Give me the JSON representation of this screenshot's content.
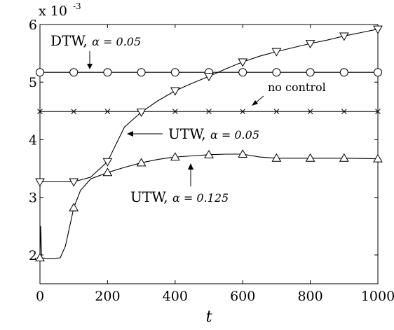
{
  "chart_data": {
    "type": "line",
    "xlabel": "t",
    "ylabel": "",
    "xlim": [
      0,
      1000
    ],
    "ylim": [
      1.5,
      6
    ],
    "y_scale_label": "x 10",
    "y_scale_exponent": "-3",
    "grid": false,
    "xticks": [
      "0",
      "200",
      "400",
      "600",
      "800",
      "1000"
    ],
    "yticks": [
      "2",
      "3",
      "4",
      "5",
      "6"
    ],
    "series": [
      {
        "name": "DTW, α = 0.05",
        "marker": "circle",
        "x": [
          0,
          100,
          200,
          300,
          400,
          500,
          600,
          700,
          800,
          900,
          1000
        ],
        "y": [
          5.17,
          5.17,
          5.17,
          5.17,
          5.17,
          5.17,
          5.17,
          5.17,
          5.17,
          5.17,
          5.17
        ]
      },
      {
        "name": "no control",
        "marker": "x",
        "x": [
          0,
          100,
          200,
          300,
          400,
          500,
          600,
          700,
          800,
          900,
          1000
        ],
        "y": [
          4.49,
          4.49,
          4.49,
          4.49,
          4.49,
          4.49,
          4.49,
          4.49,
          4.49,
          4.49,
          4.49
        ]
      },
      {
        "name": "UTW, α = 0.05",
        "marker": "triangle-down",
        "x": [
          0,
          50,
          100,
          150,
          200,
          250,
          300,
          350,
          400,
          450,
          500,
          550,
          600,
          650,
          700,
          750,
          800,
          850,
          900,
          950,
          1000
        ],
        "y": [
          3.27,
          3.27,
          3.27,
          3.35,
          3.62,
          4.22,
          4.48,
          4.68,
          4.85,
          4.98,
          5.1,
          5.23,
          5.35,
          5.45,
          5.53,
          5.6,
          5.67,
          5.73,
          5.8,
          5.86,
          5.92
        ],
        "marker_x": [
          0,
          100,
          200,
          300,
          400,
          500,
          600,
          700,
          800,
          900,
          1000
        ],
        "marker_y": [
          3.27,
          3.27,
          3.62,
          4.48,
          4.85,
          5.1,
          5.35,
          5.53,
          5.67,
          5.8,
          5.92
        ]
      },
      {
        "name": "UTW, α = 0.125",
        "marker": "triangle-up",
        "x": [
          0,
          2,
          5,
          20,
          40,
          60,
          75,
          90,
          100,
          120,
          150,
          200,
          250,
          300,
          350,
          400,
          450,
          500,
          550,
          600,
          650,
          700,
          800,
          900,
          1000
        ],
        "y": [
          1.95,
          2.5,
          1.95,
          1.94,
          1.94,
          1.95,
          2.15,
          2.55,
          2.82,
          3.12,
          3.32,
          3.43,
          3.52,
          3.6,
          3.66,
          3.7,
          3.72,
          3.74,
          3.75,
          3.75,
          3.7,
          3.68,
          3.68,
          3.68,
          3.67
        ],
        "marker_x": [
          0,
          100,
          200,
          300,
          400,
          500,
          600,
          700,
          800,
          900,
          1000
        ],
        "marker_y": [
          1.95,
          2.82,
          3.43,
          3.6,
          3.7,
          3.74,
          3.75,
          3.68,
          3.68,
          3.68,
          3.67
        ]
      }
    ],
    "annotations": [
      {
        "id": "dtw",
        "label": "DTW, ",
        "alpha_text": "α = 0.05"
      },
      {
        "id": "nocontrol",
        "label": "no control",
        "alpha_text": ""
      },
      {
        "id": "utw005",
        "label": "UTW, ",
        "alpha_text": "α = 0.05"
      },
      {
        "id": "utw0125",
        "label": "UTW, ",
        "alpha_text": "α = 0.125"
      }
    ]
  }
}
